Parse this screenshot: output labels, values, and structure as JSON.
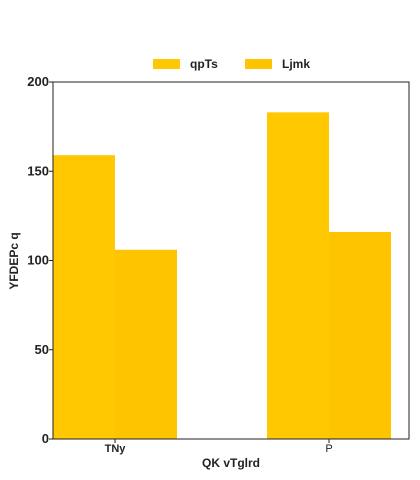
{
  "chart_data": {
    "type": "bar",
    "categories": [
      "TNy",
      "P"
    ],
    "series": [
      {
        "name": "qpTs",
        "values": [
          159,
          183
        ],
        "color": "#FFC800"
      },
      {
        "name": "Ljmk",
        "values": [
          106,
          116
        ],
        "color": "#FFC400"
      }
    ],
    "xlabel": "QK vTglrd",
    "ylabel": "YFDEPc q",
    "ylim": [
      0,
      200
    ],
    "yticks": [
      0,
      50,
      100,
      150,
      200
    ],
    "grid": false,
    "legend": "top-center"
  }
}
